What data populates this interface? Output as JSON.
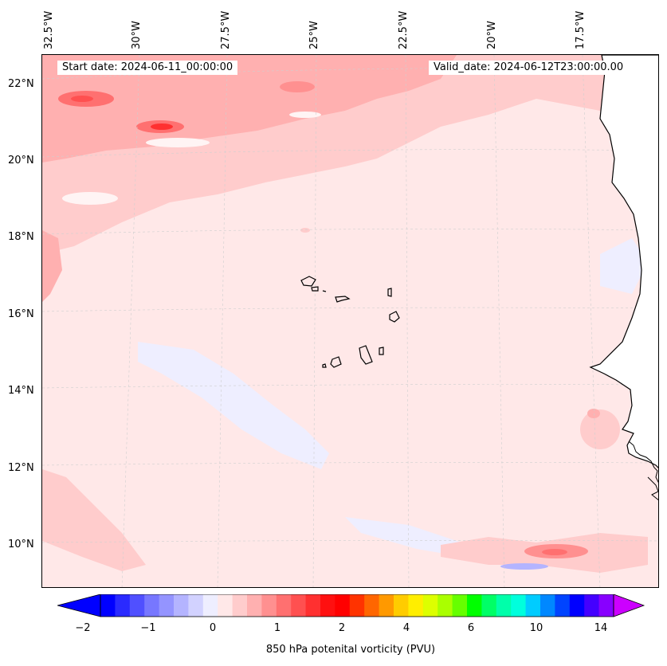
{
  "map": {
    "start_label": "Start date: 2024-06-11_00:00:00",
    "valid_label": "Valid_date: 2024-06-12T23:00:00.00",
    "lon_labels": [
      "32.5°W",
      "30°W",
      "27.5°W",
      "25°W",
      "22.5°W",
      "20°W",
      "17.5°W"
    ],
    "lat_labels": [
      "22°N",
      "20°N",
      "18°N",
      "16°N",
      "14°N",
      "12°N",
      "10°N"
    ],
    "colorbar": {
      "label": "850 hPa potenital vorticity (PVU)",
      "ticks": [
        "−2",
        "−1",
        "0",
        "1",
        "2",
        "4",
        "6",
        "10",
        "14"
      ],
      "colors": [
        "#0000ff",
        "#2a2aff",
        "#5050ff",
        "#7777ff",
        "#9494ff",
        "#b4b4ff",
        "#d2d2ff",
        "#eeeeff",
        "#ffe8e8",
        "#ffcccc",
        "#ffb0b0",
        "#ff9090",
        "#ff7070",
        "#ff5050",
        "#ff3030",
        "#ff1010",
        "#ff0000",
        "#ff3300",
        "#ff6600",
        "#ff9900",
        "#ffcc00",
        "#ffee00",
        "#ddff00",
        "#aaff00",
        "#66ff00",
        "#00ff00",
        "#00ff66",
        "#00ffaa",
        "#00ffdd",
        "#00ccff",
        "#0088ff",
        "#0044ff",
        "#0000ff",
        "#4400ff",
        "#8800ff"
      ],
      "extend_min_color": "#0000ff",
      "extend_max_color": "#cc00ff"
    }
  }
}
